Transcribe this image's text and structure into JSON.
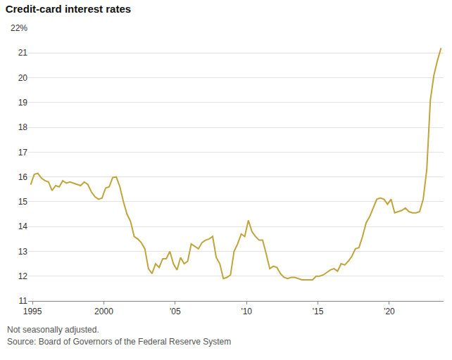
{
  "chart_data": {
    "type": "line",
    "title": "Credit-card interest rates",
    "notes": [
      "Not seasonally adjusted.",
      "Source: Board of Governors of the Federal Reserve System"
    ],
    "color": "#c0a43c",
    "grid": true,
    "x": [
      1994.875,
      1995.125,
      1995.375,
      1995.625,
      1995.875,
      1996.125,
      1996.375,
      1996.625,
      1996.875,
      1997.125,
      1997.375,
      1997.625,
      1997.875,
      1998.125,
      1998.375,
      1998.625,
      1998.875,
      1999.125,
      1999.375,
      1999.625,
      1999.875,
      2000.125,
      2000.375,
      2000.625,
      2000.875,
      2001.125,
      2001.375,
      2001.625,
      2001.875,
      2002.125,
      2002.375,
      2002.625,
      2002.875,
      2003.125,
      2003.375,
      2003.625,
      2003.875,
      2004.125,
      2004.375,
      2004.625,
      2004.875,
      2005.125,
      2005.375,
      2005.625,
      2005.875,
      2006.125,
      2006.375,
      2006.625,
      2006.875,
      2007.125,
      2007.375,
      2007.625,
      2007.875,
      2008.125,
      2008.375,
      2008.625,
      2008.875,
      2009.125,
      2009.375,
      2009.625,
      2009.875,
      2010.125,
      2010.375,
      2010.625,
      2010.875,
      2011.125,
      2011.375,
      2011.625,
      2011.875,
      2012.125,
      2012.375,
      2012.625,
      2012.875,
      2013.125,
      2013.375,
      2013.625,
      2013.875,
      2014.125,
      2014.375,
      2014.625,
      2014.875,
      2015.125,
      2015.375,
      2015.625,
      2015.875,
      2016.125,
      2016.375,
      2016.625,
      2016.875,
      2017.125,
      2017.375,
      2017.625,
      2017.875,
      2018.125,
      2018.375,
      2018.625,
      2018.875,
      2019.125,
      2019.375,
      2019.625,
      2019.875,
      2020.125,
      2020.375,
      2020.625,
      2020.875,
      2021.125,
      2021.375,
      2021.625,
      2021.875,
      2022.125,
      2022.375,
      2022.625,
      2022.875,
      2023.125,
      2023.375,
      2023.625
    ],
    "values": [
      15.69,
      16.1,
      16.15,
      15.95,
      15.85,
      15.8,
      15.45,
      15.65,
      15.6,
      15.85,
      15.75,
      15.8,
      15.75,
      15.7,
      15.65,
      15.8,
      15.7,
      15.4,
      15.2,
      15.1,
      15.15,
      15.55,
      15.6,
      15.98,
      16.0,
      15.6,
      15.0,
      14.5,
      14.2,
      13.6,
      13.5,
      13.35,
      13.1,
      12.3,
      12.1,
      12.5,
      12.35,
      12.7,
      12.7,
      13.0,
      12.5,
      12.25,
      12.75,
      12.5,
      12.6,
      13.3,
      13.2,
      13.1,
      13.35,
      13.45,
      13.5,
      13.6,
      12.75,
      12.5,
      11.9,
      11.95,
      12.05,
      13.0,
      13.3,
      13.7,
      13.6,
      14.25,
      13.8,
      13.6,
      13.45,
      13.45,
      12.9,
      12.3,
      12.4,
      12.35,
      12.1,
      11.95,
      11.9,
      11.95,
      11.95,
      11.9,
      11.85,
      11.85,
      11.85,
      11.85,
      12.0,
      12.0,
      12.05,
      12.15,
      12.25,
      12.3,
      12.2,
      12.5,
      12.45,
      12.6,
      12.8,
      13.1,
      13.15,
      13.6,
      14.15,
      14.4,
      14.75,
      15.1,
      15.15,
      15.1,
      14.9,
      15.1,
      14.55,
      14.6,
      14.65,
      14.75,
      14.6,
      14.55,
      14.55,
      14.6,
      15.1,
      16.3,
      19.1,
      20.1,
      20.7,
      21.2
    ],
    "xlim": [
      1994.7,
      2023.8
    ],
    "xticks": [
      1995,
      2000,
      {
        "value": 2005,
        "label": "'05"
      },
      {
        "value": 2010,
        "label": "'10"
      },
      {
        "value": 2015,
        "label": "'15"
      },
      {
        "value": 2020,
        "label": "'20"
      }
    ],
    "ylim": [
      11,
      22
    ],
    "yticks": [
      11,
      12,
      13,
      14,
      15,
      16,
      17,
      18,
      19,
      20,
      21,
      {
        "value": 22,
        "label": "22%"
      }
    ]
  }
}
